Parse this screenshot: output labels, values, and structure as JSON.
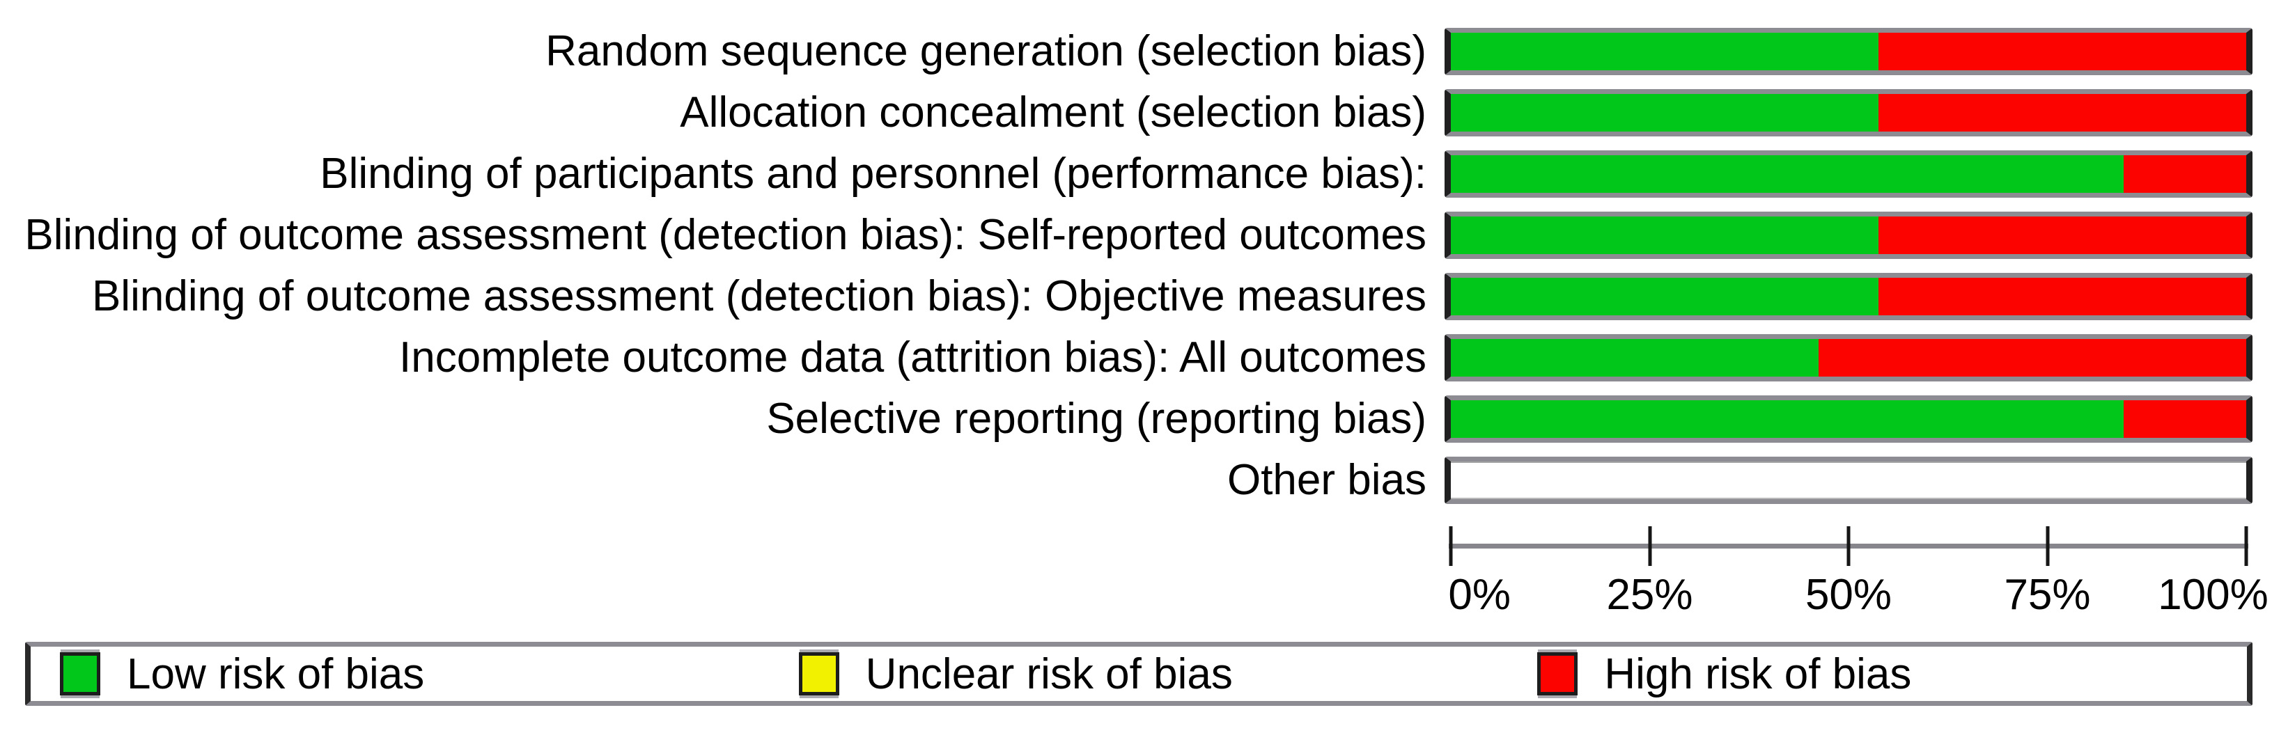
{
  "chart_data": {
    "type": "bar",
    "subtype": "horizontal-stacked-percentage",
    "title": "",
    "xlabel": "",
    "ylabel": "",
    "xlim": [
      0,
      100
    ],
    "grid": false,
    "legend_position": "bottom",
    "categories": [
      "Random sequence generation (selection bias)",
      "Allocation concealment (selection bias)",
      "Blinding of participants and personnel (performance bias):",
      "Blinding of outcome assessment (detection bias): Self-reported outcomes",
      "Blinding of outcome assessment (detection bias): Objective measures",
      "Incomplete outcome data (attrition bias): All outcomes",
      "Selective reporting (reporting bias)",
      "Other bias"
    ],
    "series": [
      {
        "name": "Low risk of bias",
        "color": "#00c71a",
        "values": [
          53.8,
          53.8,
          84.6,
          53.8,
          53.8,
          46.2,
          84.6,
          0
        ]
      },
      {
        "name": "Unclear risk of bias",
        "color": "#f2f200",
        "values": [
          0,
          0,
          0,
          0,
          0,
          0,
          0,
          0
        ]
      },
      {
        "name": "High risk of bias",
        "color": "#fc0300",
        "values": [
          46.2,
          46.2,
          15.4,
          46.2,
          46.2,
          53.8,
          15.4,
          0
        ]
      }
    ],
    "xtick_labels": [
      "0%",
      "25%",
      "50%",
      "75%",
      "100%"
    ]
  },
  "legend": {
    "items": [
      {
        "label": "Low risk of bias",
        "color": "#00c71a"
      },
      {
        "label": "Unclear risk of bias",
        "color": "#f2f200"
      },
      {
        "label": "High risk of bias",
        "color": "#fc0300"
      }
    ]
  },
  "colors": {
    "bar_frame_gray": "#8c8c92",
    "axis_gray": "#86868c",
    "empty_bar_fill": "#ffffff",
    "text": "#000000"
  }
}
